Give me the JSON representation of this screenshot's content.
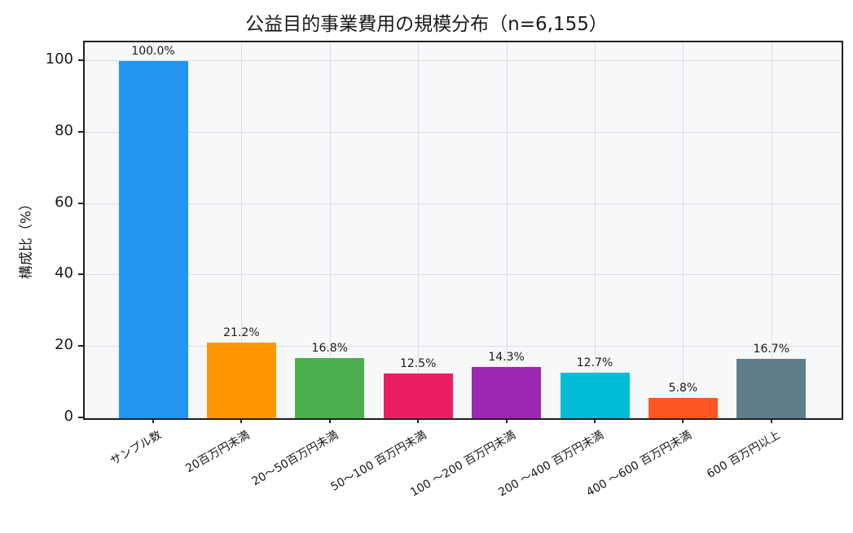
{
  "chart_data": {
    "type": "bar",
    "title": "公益目的事業費用の規模分布（n=6,155）",
    "xlabel": "",
    "ylabel": "構成比（%）",
    "ylim": [
      0,
      105
    ],
    "yticks": [
      "0",
      "20",
      "40",
      "60",
      "80",
      "100"
    ],
    "grid": true,
    "categories": [
      "サンプル数",
      "20百万円未満",
      "20～50百万円未満",
      "50～100 百万円未満",
      "100 ～200 百万円未満",
      "200 ～400 百万円未満",
      "400 ～600 百万円未満",
      "600 百万円以上"
    ],
    "values": [
      100.0,
      21.2,
      16.8,
      12.5,
      14.3,
      12.7,
      5.8,
      16.7
    ],
    "value_labels": [
      "100.0%",
      "21.2%",
      "16.8%",
      "12.5%",
      "14.3%",
      "12.7%",
      "5.8%",
      "16.7%"
    ],
    "colors": [
      "#2196F3",
      "#FF9800",
      "#4CAF50",
      "#E91E63",
      "#9C27B0",
      "#00BCD4",
      "#FF5722",
      "#607D8B"
    ]
  }
}
